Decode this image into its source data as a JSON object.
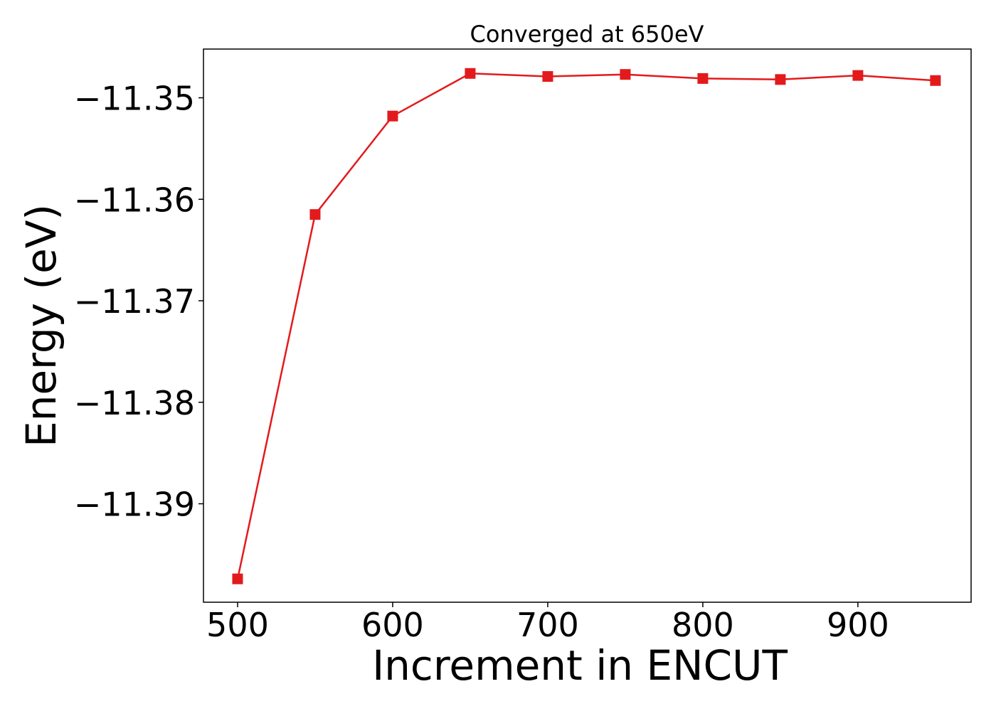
{
  "chart_data": {
    "type": "line",
    "title": "Converged at 650eV",
    "xlabel": "Increment in ENCUT",
    "ylabel": "Energy (eV)",
    "xlim": [
      478,
      973
    ],
    "ylim": [
      -11.3997,
      -11.3452
    ],
    "xticks": [
      500,
      600,
      700,
      800,
      900
    ],
    "xtick_labels": [
      "500",
      "600",
      "700",
      "800",
      "900"
    ],
    "yticks": [
      -11.39,
      -11.38,
      -11.37,
      -11.36,
      -11.35
    ],
    "ytick_labels": [
      "−11.39",
      "−11.38",
      "−11.37",
      "−11.36",
      "−11.35"
    ],
    "grid": false,
    "series": [
      {
        "color": "#e31a1c",
        "marker": "square",
        "x": [
          500,
          550,
          600,
          650,
          700,
          750,
          800,
          850,
          900,
          950
        ],
        "y": [
          -11.3974,
          -11.3615,
          -11.3518,
          -11.3476,
          -11.3479,
          -11.3477,
          -11.3481,
          -11.3482,
          -11.3478,
          -11.3483
        ]
      }
    ]
  }
}
